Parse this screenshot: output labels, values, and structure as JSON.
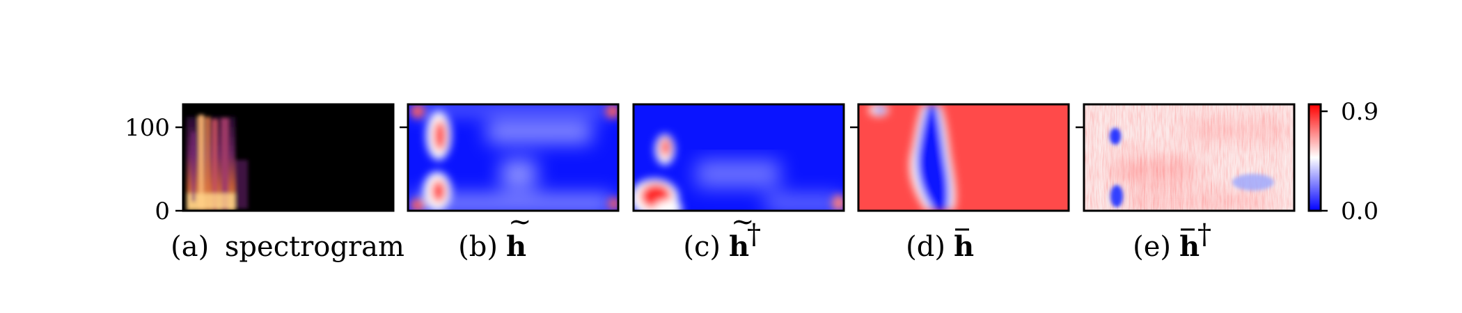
{
  "chart_data": [
    {
      "type": "heatmap",
      "panel": "a",
      "caption_label": "(a)",
      "caption_text": "spectrogram",
      "colormap": "magma",
      "y_ticks": [
        0,
        100
      ],
      "ylim": [
        0,
        128
      ],
      "description_levels": "bright energy concentrated in first ~25% of time axis, otherwise near zero"
    },
    {
      "type": "heatmap",
      "panel": "b",
      "caption_label": "(b)",
      "caption_symbol": "h",
      "caption_accent": "tilde",
      "caption_sup": "",
      "colormap": "bwr",
      "ylim": [
        0,
        128
      ]
    },
    {
      "type": "heatmap",
      "panel": "c",
      "caption_label": "(c)",
      "caption_symbol": "h",
      "caption_accent": "tilde",
      "caption_sup": "†",
      "colormap": "bwr",
      "ylim": [
        0,
        128
      ]
    },
    {
      "type": "heatmap",
      "panel": "d",
      "caption_label": "(d)",
      "caption_symbol": "h",
      "caption_accent": "bar",
      "caption_sup": "",
      "colormap": "bwr",
      "ylim": [
        0,
        128
      ]
    },
    {
      "type": "heatmap",
      "panel": "e",
      "caption_label": "(e)",
      "caption_symbol": "h",
      "caption_accent": "bar",
      "caption_sup": "†",
      "colormap": "bwr",
      "ylim": [
        0,
        128
      ]
    }
  ],
  "colorbar": {
    "min": 0.0,
    "max": 0.9,
    "min_label": "0.0",
    "max_label": "0.9",
    "colors": [
      "#0000ff",
      "#ffffff",
      "#ff0000"
    ]
  },
  "tick_labels": {
    "y0": "0",
    "y100": "100"
  },
  "colors": {
    "blue": "#0a14ff",
    "red": "#ff4a4a",
    "background": "#000000"
  }
}
